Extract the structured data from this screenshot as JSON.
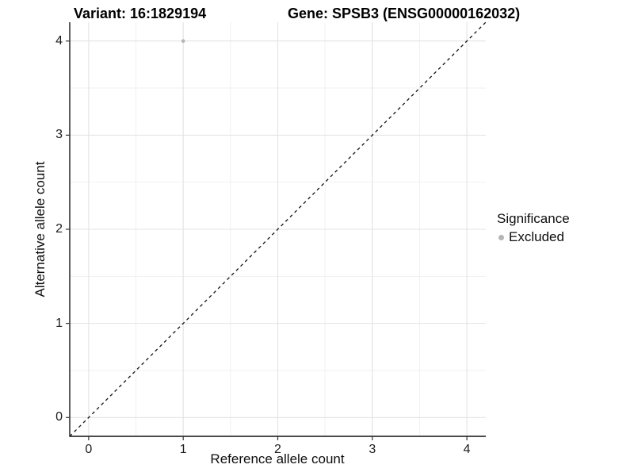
{
  "titles": {
    "variant": "Variant: 16:1829194",
    "gene": "Gene: SPSB3 (ENSG00000162032)"
  },
  "legend": {
    "title": "Significance",
    "items": [
      {
        "label": "Excluded",
        "color": "#b5b5b5"
      }
    ]
  },
  "colors": {
    "background": "#ffffff",
    "grid_major": "#e3e3e3",
    "grid_minor": "#f1f1f1",
    "axis_line": "#333333",
    "tick_text": "#1c1c1c",
    "identity_line": "#111111",
    "excluded_point": "#b5b5b5"
  },
  "chart_data": {
    "type": "scatter",
    "title_left": "Variant: 16:1829194",
    "title_right": "Gene: SPSB3 (ENSG00000162032)",
    "xlabel": "Reference allele count",
    "ylabel": "Alternative allele count",
    "xlim": [
      -0.2,
      4.2
    ],
    "ylim": [
      -0.2,
      4.2
    ],
    "x_ticks": [
      0,
      1,
      2,
      3,
      4
    ],
    "y_ticks": [
      0,
      1,
      2,
      3,
      4
    ],
    "x_minor_ticks": [
      0.5,
      1.5,
      2.5,
      3.5
    ],
    "y_minor_ticks": [
      0.5,
      1.5,
      2.5,
      3.5
    ],
    "grid": true,
    "legend_position": "right",
    "identity_line": {
      "style": "dashed",
      "from": [
        -0.2,
        -0.2
      ],
      "to": [
        4.2,
        4.2
      ]
    },
    "series": [
      {
        "name": "Excluded",
        "color": "#b5b5b5",
        "points": [
          {
            "x": 1,
            "y": 4
          }
        ]
      }
    ]
  }
}
